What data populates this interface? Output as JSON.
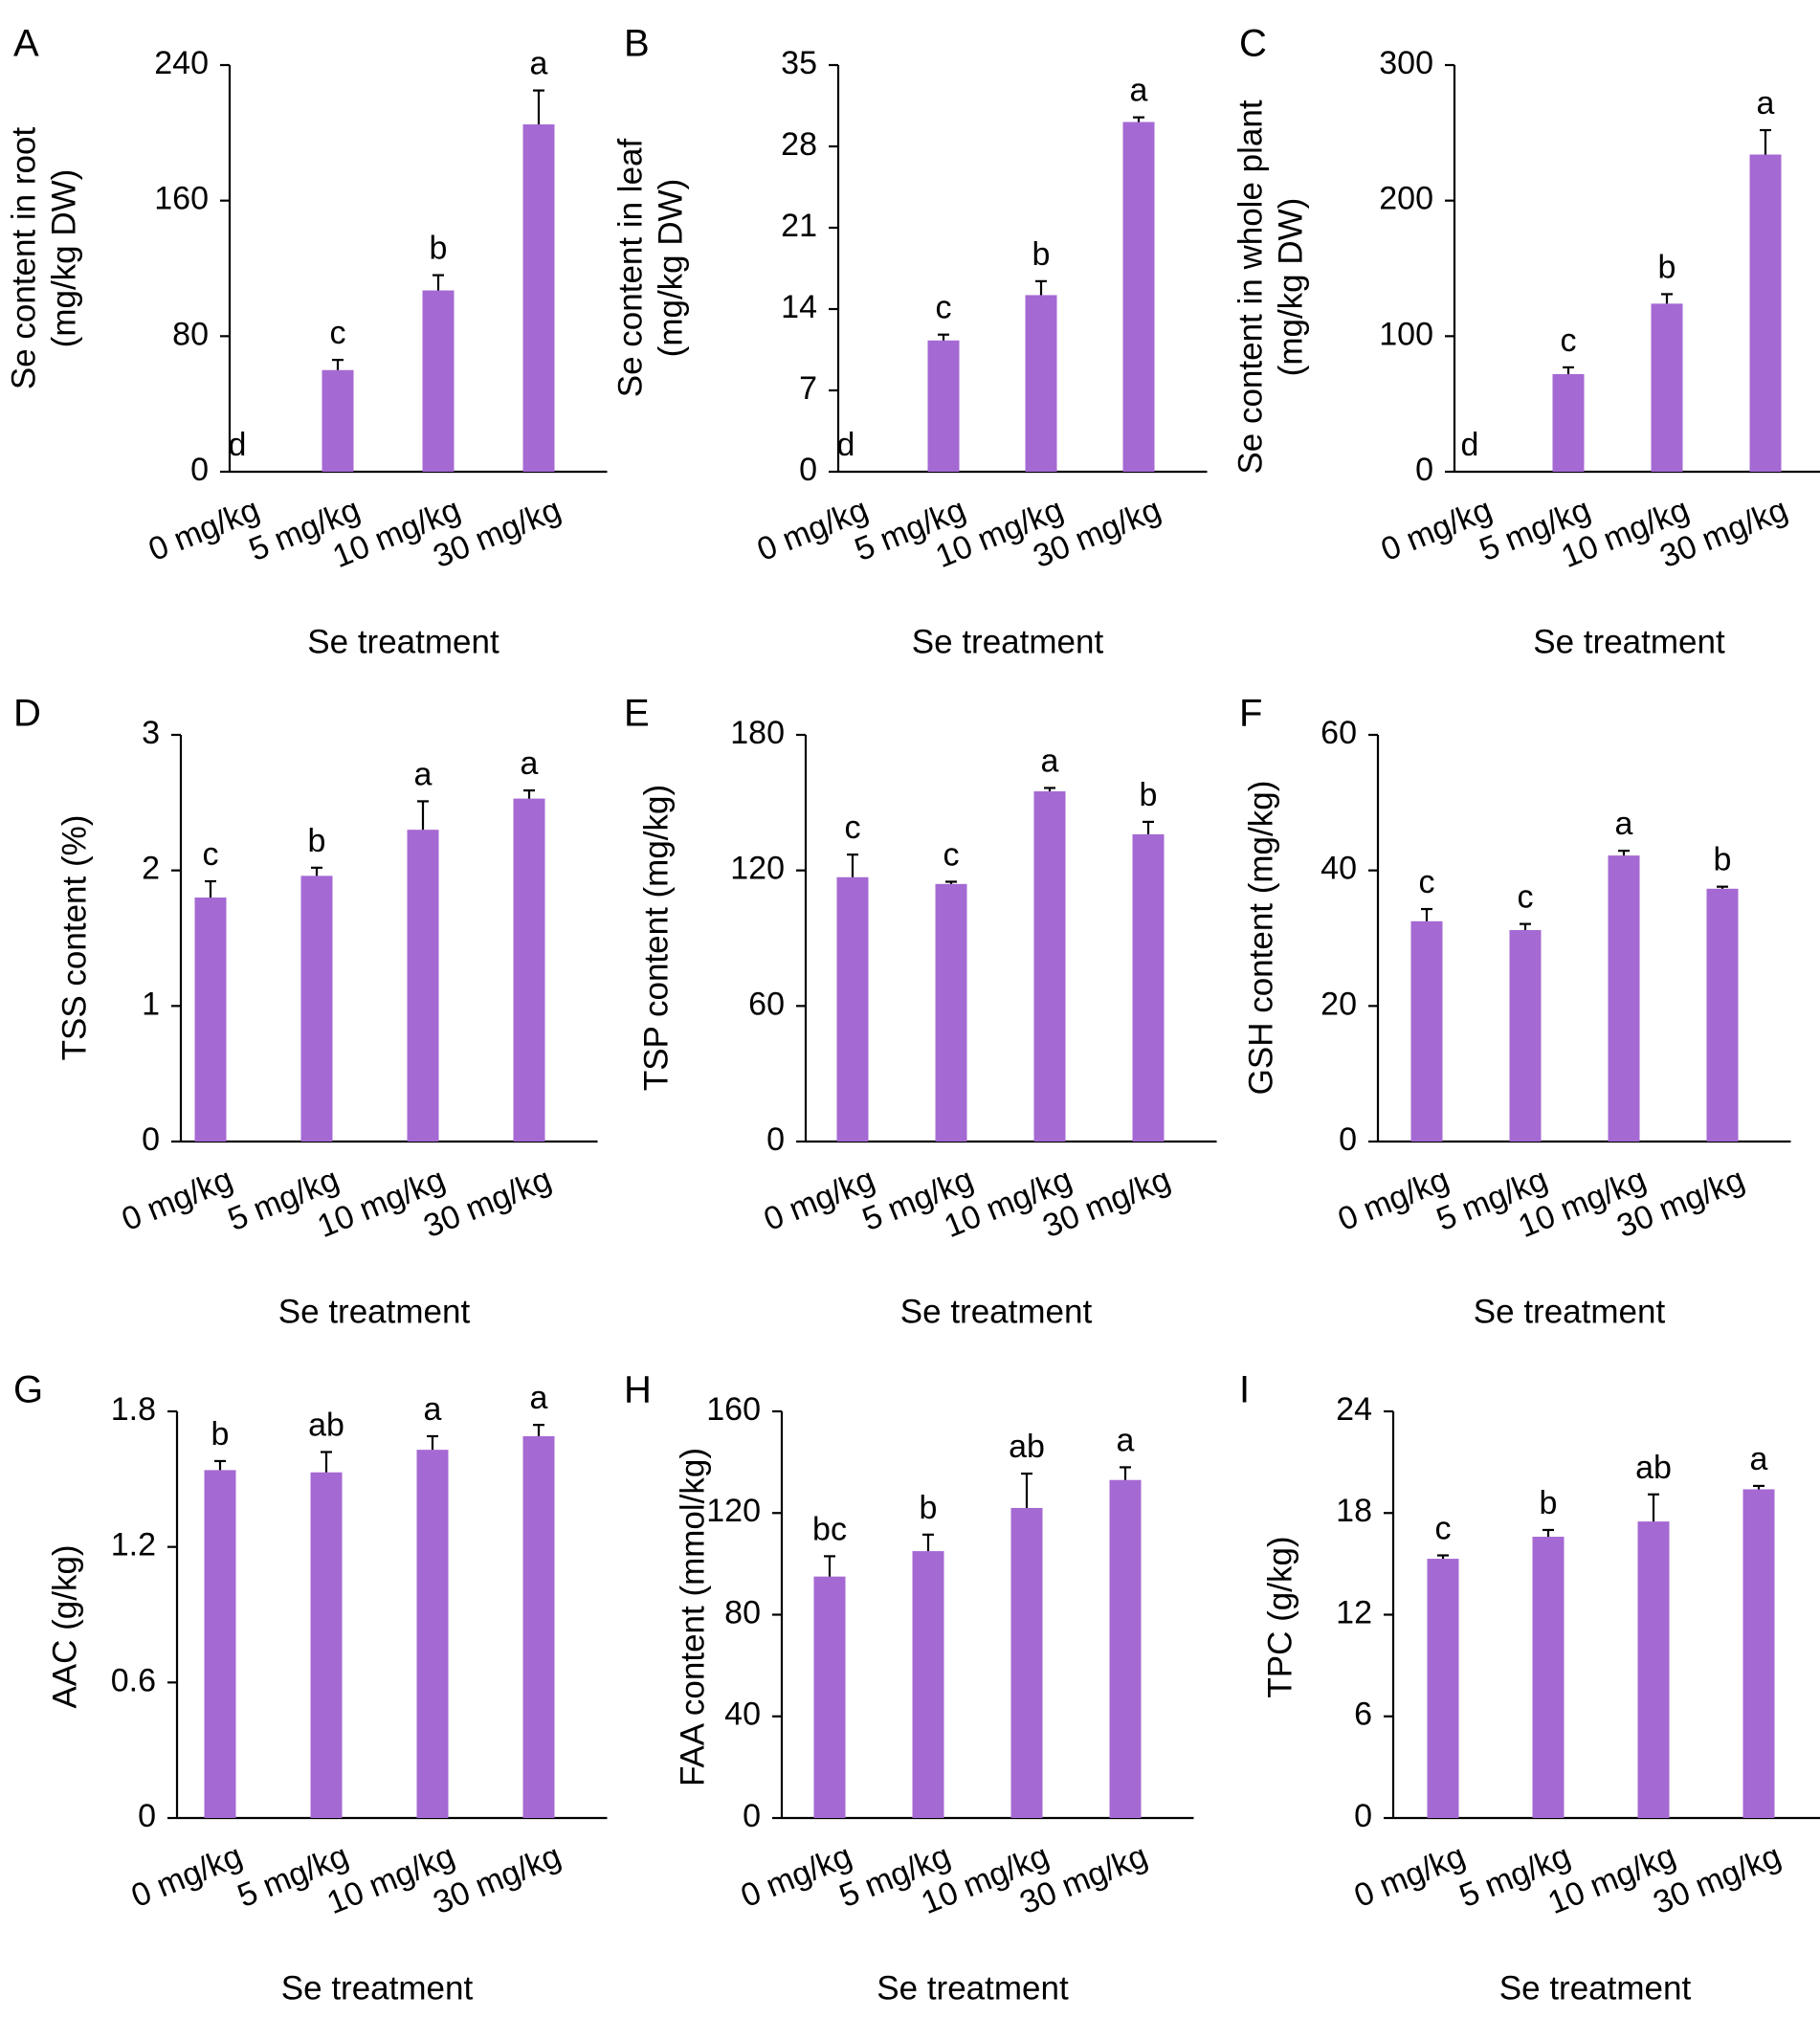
{
  "colors": {
    "bar": "#a569d3",
    "axis": "#000000",
    "background": "#ffffff"
  },
  "chart_data": [
    {
      "panel": "A",
      "type": "bar",
      "categories": [
        "0 mg/kg",
        "5 mg/kg",
        "10 mg/kg",
        "30 mg/kg"
      ],
      "values": [
        0,
        60,
        107,
        205
      ],
      "errors": [
        0,
        6,
        9,
        20
      ],
      "sig_letters": [
        "d",
        "c",
        "b",
        "a"
      ],
      "ylim": [
        0,
        240
      ],
      "yticks": [
        0,
        80,
        160,
        240
      ],
      "ylabel": [
        "Se content in root",
        "(mg/kg DW)"
      ],
      "xlabel": "Se treatment"
    },
    {
      "panel": "B",
      "type": "bar",
      "categories": [
        "0 mg/kg",
        "5 mg/kg",
        "10 mg/kg",
        "30 mg/kg"
      ],
      "values": [
        0,
        11.3,
        15.2,
        30.1
      ],
      "errors": [
        0,
        0.5,
        1.2,
        0.4
      ],
      "sig_letters": [
        "d",
        "c",
        "b",
        "a"
      ],
      "ylim": [
        0,
        35
      ],
      "yticks": [
        0,
        7,
        14,
        21,
        28,
        35
      ],
      "ylabel": [
        "Se content in leaf",
        "(mg/kg DW)"
      ],
      "xlabel": "Se treatment"
    },
    {
      "panel": "C",
      "type": "bar",
      "categories": [
        "0 mg/kg",
        "5 mg/kg",
        "10 mg/kg",
        "30 mg/kg"
      ],
      "values": [
        0,
        72,
        124,
        234
      ],
      "errors": [
        0,
        5,
        7,
        18
      ],
      "sig_letters": [
        "d",
        "c",
        "b",
        "a"
      ],
      "ylim": [
        0,
        300
      ],
      "yticks": [
        0,
        100,
        200,
        300
      ],
      "ylabel": [
        "Se content in whole plant",
        "(mg/kg DW)"
      ],
      "xlabel": "Se treatment"
    },
    {
      "panel": "D",
      "type": "bar",
      "categories": [
        "0 mg/kg",
        "5 mg/kg",
        "10 mg/kg",
        "30 mg/kg"
      ],
      "values": [
        1.8,
        1.96,
        2.3,
        2.53
      ],
      "errors": [
        0.12,
        0.06,
        0.21,
        0.06
      ],
      "sig_letters": [
        "c",
        "b",
        "a",
        "a"
      ],
      "ylim": [
        0,
        3
      ],
      "yticks": [
        0,
        1,
        2,
        3
      ],
      "ylabel": [
        "TSS content (%)"
      ],
      "xlabel": "Se treatment"
    },
    {
      "panel": "E",
      "type": "bar",
      "categories": [
        "0 mg/kg",
        "5 mg/kg",
        "10 mg/kg",
        "30 mg/kg"
      ],
      "values": [
        117,
        114,
        155,
        136
      ],
      "errors": [
        10,
        1,
        1.5,
        5.5
      ],
      "sig_letters": [
        "c",
        "c",
        "a",
        "b"
      ],
      "ylim": [
        0,
        180
      ],
      "yticks": [
        0,
        60,
        120,
        180
      ],
      "ylabel": [
        "TSP content (mg/kg)"
      ],
      "xlabel": "Se treatment"
    },
    {
      "panel": "F",
      "type": "bar",
      "categories": [
        "0 mg/kg",
        "5 mg/kg",
        "10 mg/kg",
        "30 mg/kg"
      ],
      "values": [
        32.5,
        31.2,
        42.2,
        37.3
      ],
      "errors": [
        1.8,
        0.9,
        0.7,
        0.3
      ],
      "sig_letters": [
        "c",
        "c",
        "a",
        "b"
      ],
      "ylim": [
        0,
        60
      ],
      "yticks": [
        0,
        20,
        40,
        60
      ],
      "ylabel": [
        "GSH content (mg/kg)"
      ],
      "xlabel": "Se treatment"
    },
    {
      "panel": "G",
      "type": "bar",
      "categories": [
        "0 mg/kg",
        "5 mg/kg",
        "10 mg/kg",
        "30 mg/kg"
      ],
      "values": [
        1.54,
        1.53,
        1.63,
        1.69
      ],
      "errors": [
        0.04,
        0.09,
        0.06,
        0.05
      ],
      "sig_letters": [
        "b",
        "ab",
        "a",
        "a"
      ],
      "ylim": [
        0,
        1.8
      ],
      "yticks": [
        0,
        0.6,
        1.2,
        1.8
      ],
      "ylabel": [
        "AAC (g/kg)"
      ],
      "xlabel": "Se treatment"
    },
    {
      "panel": "H",
      "type": "bar",
      "categories": [
        "0 mg/kg",
        "5 mg/kg",
        "10 mg/kg",
        "30 mg/kg"
      ],
      "values": [
        95,
        105,
        122,
        133
      ],
      "errors": [
        8,
        6.5,
        13.5,
        5
      ],
      "sig_letters": [
        "bc",
        "b",
        "ab",
        "a"
      ],
      "ylim": [
        0,
        160
      ],
      "yticks": [
        0,
        40,
        80,
        120,
        160
      ],
      "ylabel": [
        "FAA content (mmol/kg)"
      ],
      "xlabel": "Se treatment"
    },
    {
      "panel": "I",
      "type": "bar",
      "categories": [
        "0 mg/kg",
        "5 mg/kg",
        "10 mg/kg",
        "30 mg/kg"
      ],
      "values": [
        15.3,
        16.6,
        17.5,
        19.4
      ],
      "errors": [
        0.2,
        0.4,
        1.6,
        0.2
      ],
      "sig_letters": [
        "c",
        "b",
        "ab",
        "a"
      ],
      "ylim": [
        0,
        24
      ],
      "yticks": [
        0,
        6,
        12,
        18,
        24
      ],
      "ylabel": [
        "TPC (g/kg)"
      ],
      "xlabel": "Se treatment"
    }
  ]
}
